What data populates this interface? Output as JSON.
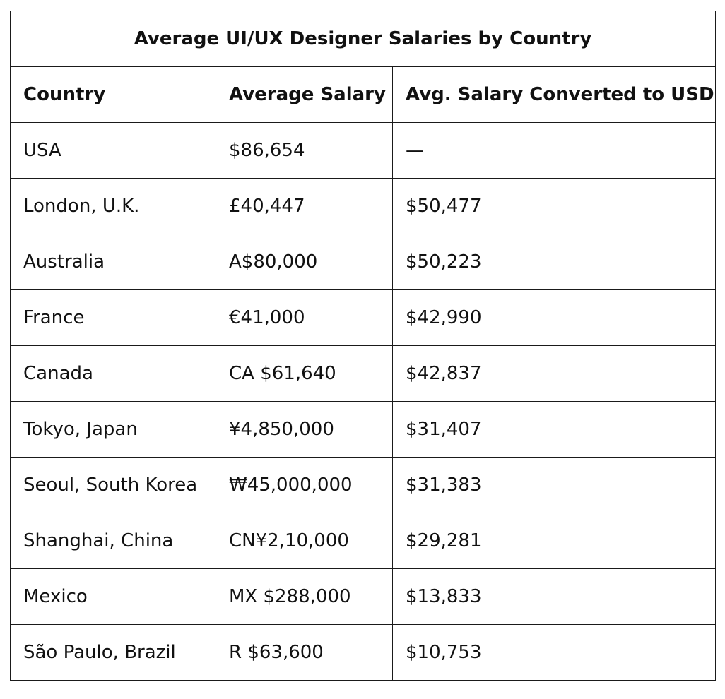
{
  "table": {
    "title": "Average UI/UX Designer Salaries by Country",
    "headers": [
      "Country",
      "Average Salary",
      "Avg. Salary Converted to USD"
    ],
    "rows": [
      [
        "USA",
        "$86,654",
        "—"
      ],
      [
        "London, U.K.",
        "£40,447",
        "$50,477"
      ],
      [
        "Australia",
        "A$80,000",
        "$50,223"
      ],
      [
        "France",
        "€41,000",
        "$42,990"
      ],
      [
        "Canada",
        "CA $61,640",
        "$42,837"
      ],
      [
        "Tokyo, Japan",
        "¥4,850,000",
        "$31,407"
      ],
      [
        "Seoul, South Korea",
        "₩45,000,000",
        "$31,383"
      ],
      [
        "Shanghai, China",
        "CN¥2,10,000",
        "$29,281"
      ],
      [
        "Mexico",
        "MX $288,000",
        "$13,833"
      ],
      [
        "São Paulo, Brazil",
        "R $63,600",
        "$10,753"
      ]
    ]
  }
}
